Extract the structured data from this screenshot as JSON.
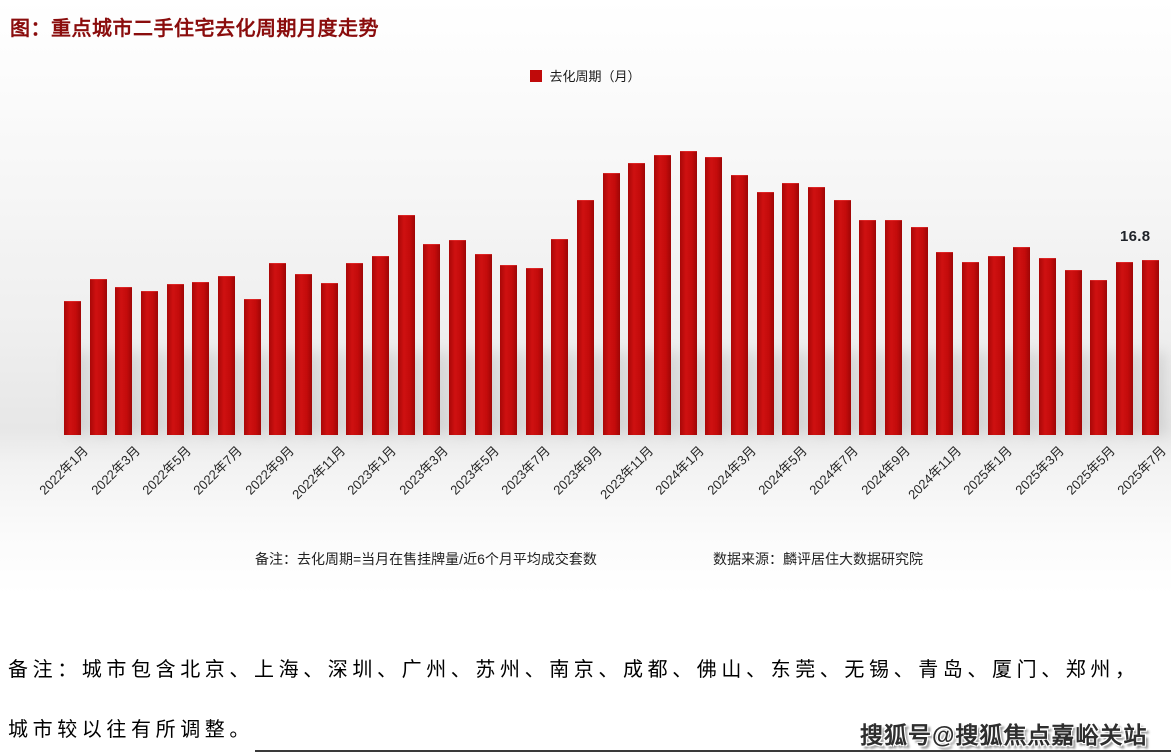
{
  "page": {
    "title": "图：重点城市二手住宅去化周期月度走势"
  },
  "legend": {
    "label": "去化周期（月）",
    "color": "#c00a0a"
  },
  "annotation": {
    "last_value_label": "16.8"
  },
  "notes": {
    "formula_note": "备注：去化周期=当月在售挂牌量/近6个月平均成交套数",
    "source_note": "数据来源：麟评居住大数据研究院"
  },
  "footer": {
    "remark_line1": "备注：城市包含北京、上海、深圳、广州、苏州、南京、成都、佛山、东莞、无锡、青岛、厦门、郑州，",
    "remark_line2": "城市较以往有所调整。",
    "watermark": "搜狐号@搜狐焦点嘉峪关站"
  },
  "chart_data": {
    "type": "bar",
    "title": "图：重点城市二手住宅去化周期月度走势",
    "series_name": "去化周期（月）",
    "bar_color": "#c00a0a",
    "ylim": [
      0,
      30
    ],
    "grid": false,
    "legend_position": "top-center",
    "last_point_label": "16.8",
    "categories": [
      "2022年1月",
      "2022年2月",
      "2022年3月",
      "2022年4月",
      "2022年5月",
      "2022年6月",
      "2022年7月",
      "2022年8月",
      "2022年9月",
      "2022年10月",
      "2022年11月",
      "2022年12月",
      "2023年1月",
      "2023年2月",
      "2023年3月",
      "2023年4月",
      "2023年5月",
      "2023年6月",
      "2023年7月",
      "2023年8月",
      "2023年9月",
      "2023年10月",
      "2023年11月",
      "2023年12月",
      "2024年1月",
      "2024年2月",
      "2024年3月",
      "2024年4月",
      "2024年5月",
      "2024年6月",
      "2024年7月",
      "2024年8月",
      "2024年9月",
      "2024年10月",
      "2024年11月",
      "2024年12月",
      "2025年1月",
      "2025年2月",
      "2025年3月",
      "2025年4月",
      "2025年5月",
      "2025年6月",
      "2025年7月"
    ],
    "values": [
      12.9,
      15.0,
      14.2,
      13.8,
      14.5,
      14.7,
      15.3,
      13.1,
      16.5,
      15.5,
      14.6,
      16.5,
      17.2,
      21.1,
      18.3,
      18.7,
      17.4,
      16.3,
      16.0,
      18.8,
      22.6,
      25.2,
      26.1,
      26.9,
      27.3,
      26.7,
      25.0,
      23.3,
      24.2,
      23.8,
      22.6,
      20.6,
      20.6,
      20.0,
      17.6,
      16.6,
      17.2,
      18.1,
      17.0,
      15.8,
      14.9,
      16.6,
      16.8
    ],
    "x_tick_labels": [
      "2022年1月",
      "2022年3月",
      "2022年5月",
      "2022年7月",
      "2022年9月",
      "2022年11月",
      "2023年1月",
      "2023年3月",
      "2023年5月",
      "2023年7月",
      "2023年9月",
      "2023年11月",
      "2024年1月",
      "2024年3月",
      "2024年5月",
      "2024年7月",
      "2024年9月",
      "2024年11月",
      "2025年1月",
      "2025年3月",
      "2025年5月",
      "2025年7月"
    ]
  }
}
